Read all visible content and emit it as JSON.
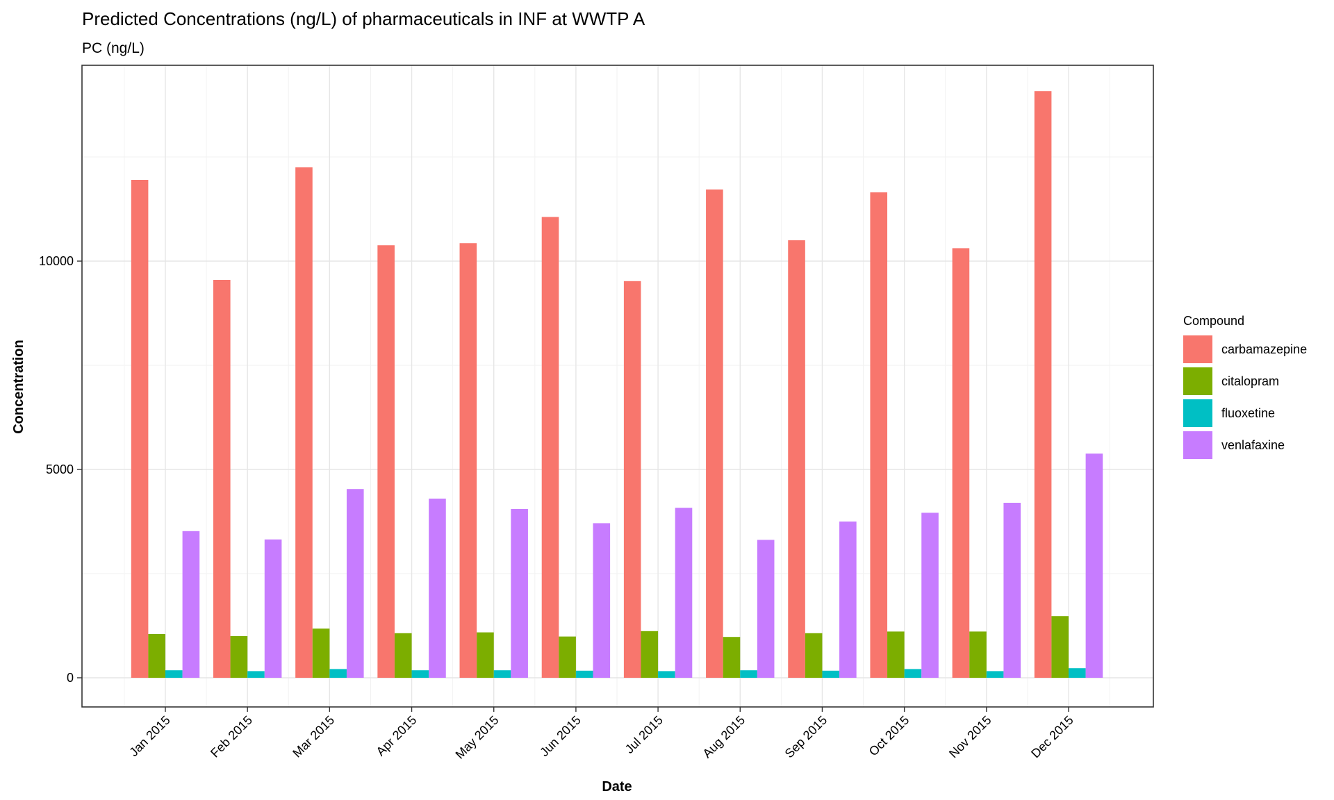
{
  "chart_data": {
    "type": "bar",
    "title": "Predicted Concentrations (ng/L) of pharmaceuticals in INF at WWTP A",
    "subtitle": "PC (ng/L)",
    "xlabel": "Date",
    "ylabel": "Concentration",
    "ylim": [
      -700,
      14700
    ],
    "yticks": [
      0,
      5000,
      10000
    ],
    "grid": true,
    "legend": {
      "title": "Compound",
      "position": "right"
    },
    "categories": [
      "Jan 2015",
      "Feb 2015",
      "Mar 2015",
      "Apr 2015",
      "May 2015",
      "Jun 2015",
      "Jul 2015",
      "Aug 2015",
      "Sep 2015",
      "Oct 2015",
      "Nov 2015",
      "Dec 2015"
    ],
    "series": [
      {
        "name": "carbamazepine",
        "color": "#F8766D",
        "values": [
          11950,
          9550,
          12250,
          10380,
          10430,
          11060,
          9520,
          11720,
          10500,
          11650,
          10310,
          14080
        ]
      },
      {
        "name": "citalopram",
        "color": "#7CAE00",
        "values": [
          1050,
          1000,
          1180,
          1070,
          1090,
          990,
          1120,
          980,
          1070,
          1110,
          1110,
          1480
        ]
      },
      {
        "name": "fluoxetine",
        "color": "#00BFC4",
        "values": [
          180,
          160,
          210,
          180,
          180,
          170,
          160,
          180,
          170,
          210,
          160,
          230
        ]
      },
      {
        "name": "venlafaxine",
        "color": "#C77CFF",
        "values": [
          3520,
          3320,
          4530,
          4300,
          4050,
          3710,
          4080,
          3310,
          3750,
          3960,
          4200,
          5380
        ]
      }
    ]
  }
}
